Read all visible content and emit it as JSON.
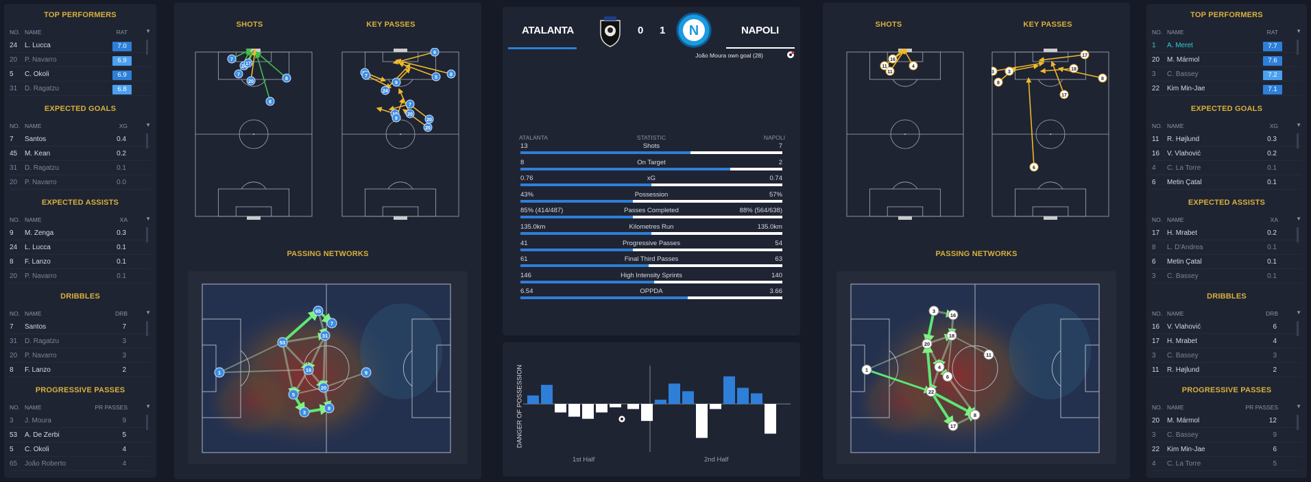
{
  "left": {
    "sections": [
      {
        "title": "TOP PERFORMERS",
        "no": "NO.",
        "name": "NAME",
        "col": "RAT",
        "badge": true,
        "rows": [
          {
            "no": "24",
            "name": "L. Lucca",
            "val": "7.0",
            "hi": true
          },
          {
            "no": "20",
            "name": "P. Navarro",
            "val": "6.9",
            "hi": false
          },
          {
            "no": "5",
            "name": "C. Okoli",
            "val": "6.9",
            "hi": true
          },
          {
            "no": "31",
            "name": "D. Ragatzu",
            "val": "6.8",
            "hi": false
          }
        ]
      },
      {
        "title": "EXPECTED GOALS",
        "no": "NO.",
        "name": "NAME",
        "col": "XG",
        "rows": [
          {
            "no": "7",
            "name": "Santos",
            "val": "0.4",
            "hi": true
          },
          {
            "no": "45",
            "name": "M. Kean",
            "val": "0.2",
            "hi": true
          },
          {
            "no": "31",
            "name": "D. Ragatzu",
            "val": "0.1",
            "hi": false
          },
          {
            "no": "20",
            "name": "P. Navarro",
            "val": "0.0",
            "hi": false
          }
        ]
      },
      {
        "title": "EXPECTED ASSISTS",
        "no": "NO.",
        "name": "NAME",
        "col": "XA",
        "rows": [
          {
            "no": "9",
            "name": "M. Zenga",
            "val": "0.3",
            "hi": true
          },
          {
            "no": "24",
            "name": "L. Lucca",
            "val": "0.1",
            "hi": true
          },
          {
            "no": "8",
            "name": "F. Lanzo",
            "val": "0.1",
            "hi": true
          },
          {
            "no": "20",
            "name": "P. Navarro",
            "val": "0.1",
            "hi": false
          }
        ]
      },
      {
        "title": "DRIBBLES",
        "no": "NO.",
        "name": "NAME",
        "col": "DRB",
        "rows": [
          {
            "no": "7",
            "name": "Santos",
            "val": "7",
            "hi": true
          },
          {
            "no": "31",
            "name": "D. Ragatzu",
            "val": "3",
            "hi": false
          },
          {
            "no": "20",
            "name": "P. Navarro",
            "val": "3",
            "hi": false
          },
          {
            "no": "8",
            "name": "F. Lanzo",
            "val": "2",
            "hi": true
          }
        ]
      },
      {
        "title": "PROGRESSIVE PASSES",
        "no": "NO.",
        "name": "NAME",
        "col": "PR PASSES",
        "rows": [
          {
            "no": "3",
            "name": "J. Moura",
            "val": "9",
            "hi": false
          },
          {
            "no": "53",
            "name": "A. De Zerbi",
            "val": "5",
            "hi": true
          },
          {
            "no": "5",
            "name": "C. Okoli",
            "val": "4",
            "hi": true
          },
          {
            "no": "65",
            "name": "João Roberto",
            "val": "4",
            "hi": false
          }
        ]
      }
    ]
  },
  "right": {
    "sections": [
      {
        "title": "TOP PERFORMERS",
        "no": "NO.",
        "name": "NAME",
        "col": "RAT",
        "badge": true,
        "rows": [
          {
            "no": "1",
            "name": "A. Meret",
            "val": "7.7",
            "hi": true,
            "cyan": true
          },
          {
            "no": "20",
            "name": "M. Mármol",
            "val": "7.6",
            "hi": true
          },
          {
            "no": "3",
            "name": "C. Bassey",
            "val": "7.2",
            "hi": false
          },
          {
            "no": "22",
            "name": "Kim Min-Jae",
            "val": "7.1",
            "hi": true
          }
        ]
      },
      {
        "title": "EXPECTED GOALS",
        "no": "NO.",
        "name": "NAME",
        "col": "XG",
        "rows": [
          {
            "no": "11",
            "name": "R. Højlund",
            "val": "0.3",
            "hi": true
          },
          {
            "no": "16",
            "name": "V. Vlahović",
            "val": "0.2",
            "hi": true
          },
          {
            "no": "4",
            "name": "C. La Torre",
            "val": "0.1",
            "hi": false
          },
          {
            "no": "6",
            "name": "Metin Çatal",
            "val": "0.1",
            "hi": true
          }
        ]
      },
      {
        "title": "EXPECTED ASSISTS",
        "no": "NO.",
        "name": "NAME",
        "col": "XA",
        "rows": [
          {
            "no": "17",
            "name": "H. Mrabet",
            "val": "0.2",
            "hi": true
          },
          {
            "no": "8",
            "name": "L. D'Andrea",
            "val": "0.1",
            "hi": false
          },
          {
            "no": "6",
            "name": "Metin Çatal",
            "val": "0.1",
            "hi": true
          },
          {
            "no": "3",
            "name": "C. Bassey",
            "val": "0.1",
            "hi": false
          }
        ]
      },
      {
        "title": "DRIBBLES",
        "no": "NO.",
        "name": "NAME",
        "col": "DRB",
        "rows": [
          {
            "no": "16",
            "name": "V. Vlahović",
            "val": "6",
            "hi": true
          },
          {
            "no": "17",
            "name": "H. Mrabet",
            "val": "4",
            "hi": true
          },
          {
            "no": "3",
            "name": "C. Bassey",
            "val": "3",
            "hi": false
          },
          {
            "no": "11",
            "name": "R. Højlund",
            "val": "2",
            "hi": true
          }
        ]
      },
      {
        "title": "PROGRESSIVE PASSES",
        "no": "NO.",
        "name": "NAME",
        "col": "PR PASSES",
        "rows": [
          {
            "no": "20",
            "name": "M. Mármol",
            "val": "12",
            "hi": true
          },
          {
            "no": "3",
            "name": "C. Bassey",
            "val": "9",
            "hi": false
          },
          {
            "no": "22",
            "name": "Kim Min-Jae",
            "val": "6",
            "hi": true
          },
          {
            "no": "4",
            "name": "C. La Torre",
            "val": "5",
            "hi": false
          }
        ]
      }
    ]
  },
  "atalanta_panel": {
    "shots": "SHOTS",
    "key_passes": "KEY PASSES",
    "networks": "PASSING NETWORKS",
    "shot_nodes": [
      "7",
      "24",
      "17",
      "7",
      "20",
      "8",
      "8"
    ],
    "kp_nodes": [
      "9",
      "33",
      "7",
      "9",
      "8",
      "5",
      "24",
      "13",
      "9",
      "7",
      "20",
      "20",
      "20"
    ],
    "net_nodes": [
      "1",
      "53",
      "65",
      "7",
      "31",
      "16",
      "9",
      "20",
      "5",
      "3",
      "8"
    ]
  },
  "napoli_panel": {
    "shots": "SHOTS",
    "key_passes": "KEY PASSES",
    "networks": "PASSING NETWORKS",
    "shot_nodes": [
      "16",
      "11",
      "4",
      "11"
    ],
    "kp_nodes": [
      "17",
      "3",
      "3",
      "8",
      "18",
      "8",
      "17",
      "6"
    ],
    "net_nodes": [
      "1",
      "3",
      "16",
      "18",
      "20",
      "11",
      "4",
      "6",
      "22",
      "8",
      "17"
    ]
  },
  "match": {
    "home": "ATALANTA",
    "away": "NAPOLI",
    "home_score": "0",
    "away_score": "1",
    "event": "João Moura own goal (28)",
    "home_badge": "atalanta-crest-icon",
    "away_badge": "napoli-crest-icon",
    "colors": {
      "accent": "#2e7fd8",
      "gold": "#d9b13a",
      "napoli": "#1b9ae0"
    }
  },
  "stats": {
    "h_team": "ATALANTA",
    "h_stat": "STATISTIC",
    "h_away": "NAPOLI",
    "rows": [
      {
        "home": "13",
        "label": "Shots",
        "away": "7",
        "share": 0.65
      },
      {
        "home": "8",
        "label": "On Target",
        "away": "2",
        "share": 0.8
      },
      {
        "home": "0.76",
        "label": "xG",
        "away": "0.74",
        "share": 0.5
      },
      {
        "home": "43%",
        "label": "Possession",
        "away": "57%",
        "share": 0.43
      },
      {
        "home": "85% (414/487)",
        "label": "Passes Completed",
        "away": "88% (564/638)",
        "share": 0.43
      },
      {
        "home": "135.0km",
        "label": "Kilometres Run",
        "away": "135.0km",
        "share": 0.5
      },
      {
        "home": "41",
        "label": "Progressive Passes",
        "away": "54",
        "share": 0.43
      },
      {
        "home": "61",
        "label": "Final Third Passes",
        "away": "63",
        "share": 0.49
      },
      {
        "home": "146",
        "label": "High Intensity Sprints",
        "away": "140",
        "share": 0.51
      },
      {
        "home": "6.54",
        "label": "OPPDA",
        "away": "3.66",
        "share": 0.64
      }
    ]
  },
  "danger": {
    "ylabel": "DANGER OF POSSESSION",
    "first": "1st Half",
    "second": "2nd Half",
    "chart_data": {
      "type": "bar",
      "series": [
        {
          "name": "",
          "values": [
            0.2,
            0.45,
            -0.2,
            -0.3,
            -0.35,
            -0.2,
            -0.08,
            -0.12,
            -0.4,
            0.1,
            0.48,
            0.3,
            -0.8,
            -0.12,
            0.65,
            0.38,
            0.25,
            -0.7
          ]
        }
      ],
      "ylim": [
        -1,
        1
      ]
    }
  }
}
